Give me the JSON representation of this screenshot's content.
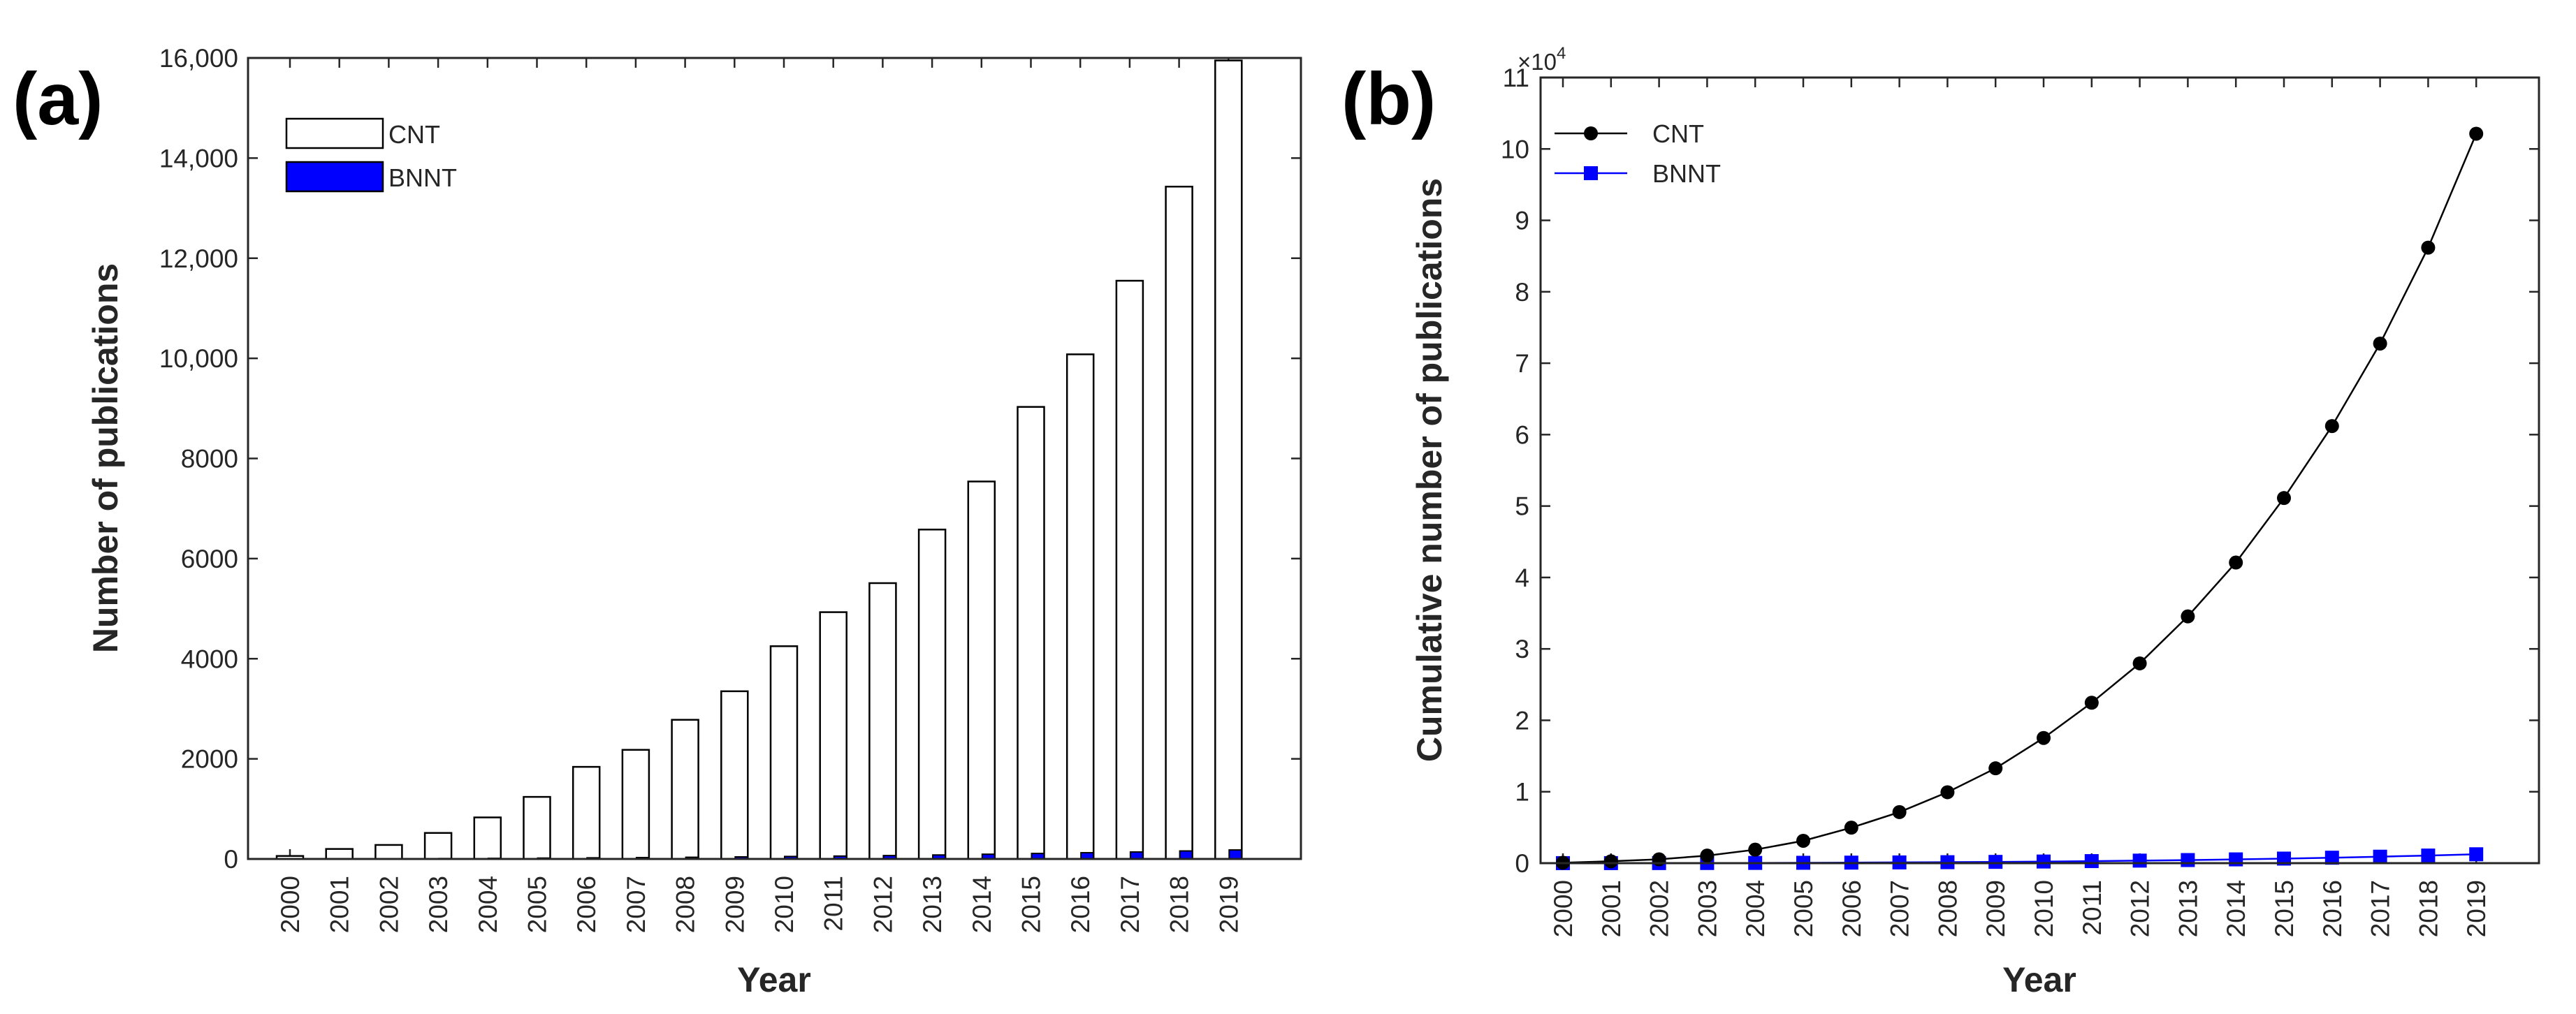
{
  "chart_data": [
    {
      "panel_label": "(a)",
      "type": "bar",
      "xlabel": "Year",
      "ylabel": "Number of publications",
      "ylim": [
        0,
        16000
      ],
      "categories": [
        "2000",
        "2001",
        "2002",
        "2003",
        "2004",
        "2005",
        "2006",
        "2007",
        "2008",
        "2009",
        "2010",
        "2011",
        "2012",
        "2013",
        "2014",
        "2015",
        "2016",
        "2017",
        "2018",
        "2019"
      ],
      "ytick_labels": [
        "0",
        "2000",
        "4000",
        "6000",
        "8000",
        "10,000",
        "12,000",
        "14,000",
        "16,000"
      ],
      "legend": [
        "CNT",
        "BNNT"
      ],
      "legend_position": "top-left",
      "series": [
        {
          "name": "CNT",
          "color": "#ffffff",
          "edge_color": "#000000",
          "values": [
            60,
            200,
            280,
            520,
            830,
            1240,
            1840,
            2180,
            2780,
            3350,
            4250,
            4930,
            5510,
            6580,
            7540,
            9030,
            10080,
            11550,
            13430,
            15950
          ]
        },
        {
          "name": "BNNT",
          "color": "#0000ff",
          "edge_color": "#000000",
          "values": [
            2,
            4,
            6,
            9,
            13,
            18,
            23,
            28,
            34,
            42,
            50,
            58,
            68,
            80,
            95,
            110,
            125,
            140,
            160,
            180
          ]
        }
      ]
    },
    {
      "panel_label": "(b)",
      "type": "line",
      "xlabel": "Year",
      "ylabel": "Cumulative number of publications",
      "ylim": [
        0,
        110000
      ],
      "y_multiplier_base": "×10",
      "y_multiplier_exp": "4",
      "ytick_labels": [
        "0",
        "1",
        "2",
        "3",
        "4",
        "5",
        "6",
        "7",
        "8",
        "9",
        "10",
        "11"
      ],
      "x": [
        "2000",
        "2001",
        "2002",
        "2003",
        "2004",
        "2005",
        "2006",
        "2007",
        "2008",
        "2009",
        "2010",
        "2011",
        "2012",
        "2013",
        "2014",
        "2015",
        "2016",
        "2017",
        "2018",
        "2019"
      ],
      "legend": [
        "CNT",
        "BNNT"
      ],
      "legend_position": "top-left",
      "series": [
        {
          "name": "CNT",
          "color": "#000000",
          "marker": "circle",
          "values": [
            60,
            260,
            540,
            1060,
            1890,
            3130,
            4970,
            7150,
            9930,
            13280,
            17530,
            22460,
            27970,
            34550,
            42090,
            51120,
            61200,
            72750,
            86180,
            102130
          ]
        },
        {
          "name": "BNNT",
          "color": "#0000ff",
          "marker": "square",
          "values": [
            2,
            6,
            12,
            21,
            34,
            52,
            75,
            103,
            137,
            179,
            229,
            287,
            355,
            435,
            530,
            640,
            765,
            905,
            1065,
            1245
          ]
        }
      ]
    }
  ]
}
